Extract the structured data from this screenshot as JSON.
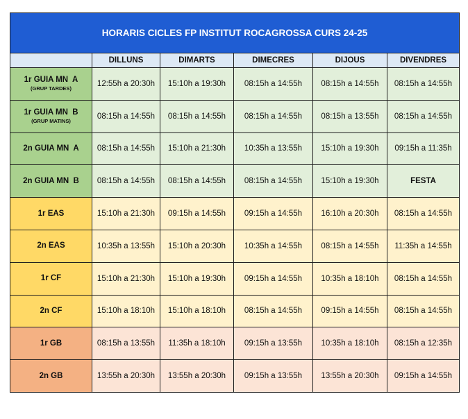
{
  "title": "HORARIS CICLES FP INSTITUT ROCAGROSSA CURS 24-25",
  "days": [
    "DILLUNS",
    "DIMARTS",
    "DIMECRES",
    "DIJOUS",
    "DIVENDRES"
  ],
  "colors": {
    "header": "#1f5dd3",
    "green": "#a9d18e",
    "yellow": "#ffd966",
    "orange": "#f4b183"
  },
  "rows": [
    {
      "label": "1r GUIA MN  A",
      "sub": "(GRUP TARDES)",
      "group": "green",
      "cells": [
        "12:55h a 20:30h",
        "15:10h a 19:30h",
        "08:15h a 14:55h",
        "08:15h a 14:55h",
        "08:15h a 14:55h"
      ]
    },
    {
      "label": "1r GUIA MN  B",
      "sub": "(GRUP MATINS)",
      "group": "green",
      "cells": [
        "08:15h a 14:55h",
        "08:15h a 14:55h",
        "08:15h a 14:55h",
        "08:15h a 13:55h",
        "08:15h a 14:55h"
      ]
    },
    {
      "label": "2n GUIA MN  A",
      "sub": "",
      "group": "green",
      "cells": [
        "08:15h a 14:55h",
        "15:10h a 21:30h",
        "10:35h a 13:55h",
        "15:10h a 19:30h",
        "09:15h a 11:35h"
      ]
    },
    {
      "label": "2n GUIA MN  B",
      "sub": "",
      "group": "green",
      "cells": [
        "08:15h a 14:55h",
        "08:15h a 14:55h",
        "08:15h a 14:55h",
        "15:10h a 19:30h",
        "FESTA"
      ]
    },
    {
      "label": "1r EAS",
      "sub": "",
      "group": "yellow",
      "cells": [
        "15:10h a 21:30h",
        "09:15h a 14:55h",
        "09:15h a 14:55h",
        "16:10h a 20:30h",
        "08:15h a 14:55h"
      ]
    },
    {
      "label": "2n EAS",
      "sub": "",
      "group": "yellow",
      "cells": [
        "10:35h a 13:55h",
        "15:10h a 20:30h",
        "10:35h a 14:55h",
        "08:15h a 14:55h",
        "11:35h a 14:55h"
      ]
    },
    {
      "label": "1r CF",
      "sub": "",
      "group": "yellow",
      "cells": [
        "15:10h a 21:30h",
        "15:10h a 19:30h",
        "09:15h a 14:55h",
        "10:35h a 18:10h",
        "08:15h a 14:55h"
      ]
    },
    {
      "label": "2n CF",
      "sub": "",
      "group": "yellow",
      "cells": [
        "15:10h a 18:10h",
        "15:10h a 18:10h",
        "08:15h a 14:55h",
        "09:15h a 14:55h",
        "08:15h a 14:55h"
      ]
    },
    {
      "label": "1r GB",
      "sub": "",
      "group": "orange",
      "cells": [
        "08:15h a 13:55h",
        "11:35h a 18:10h",
        "09:15h a 13:55h",
        "10:35h a 18:10h",
        "08:15h a 12:35h"
      ]
    },
    {
      "label": "2n GB",
      "sub": "",
      "group": "orange",
      "cells": [
        "13:55h a 20:30h",
        "13:55h a 20:30h",
        "09:15h a 13:55h",
        "13:55h a 20:30h",
        "09:15h a 14:55h"
      ]
    }
  ]
}
